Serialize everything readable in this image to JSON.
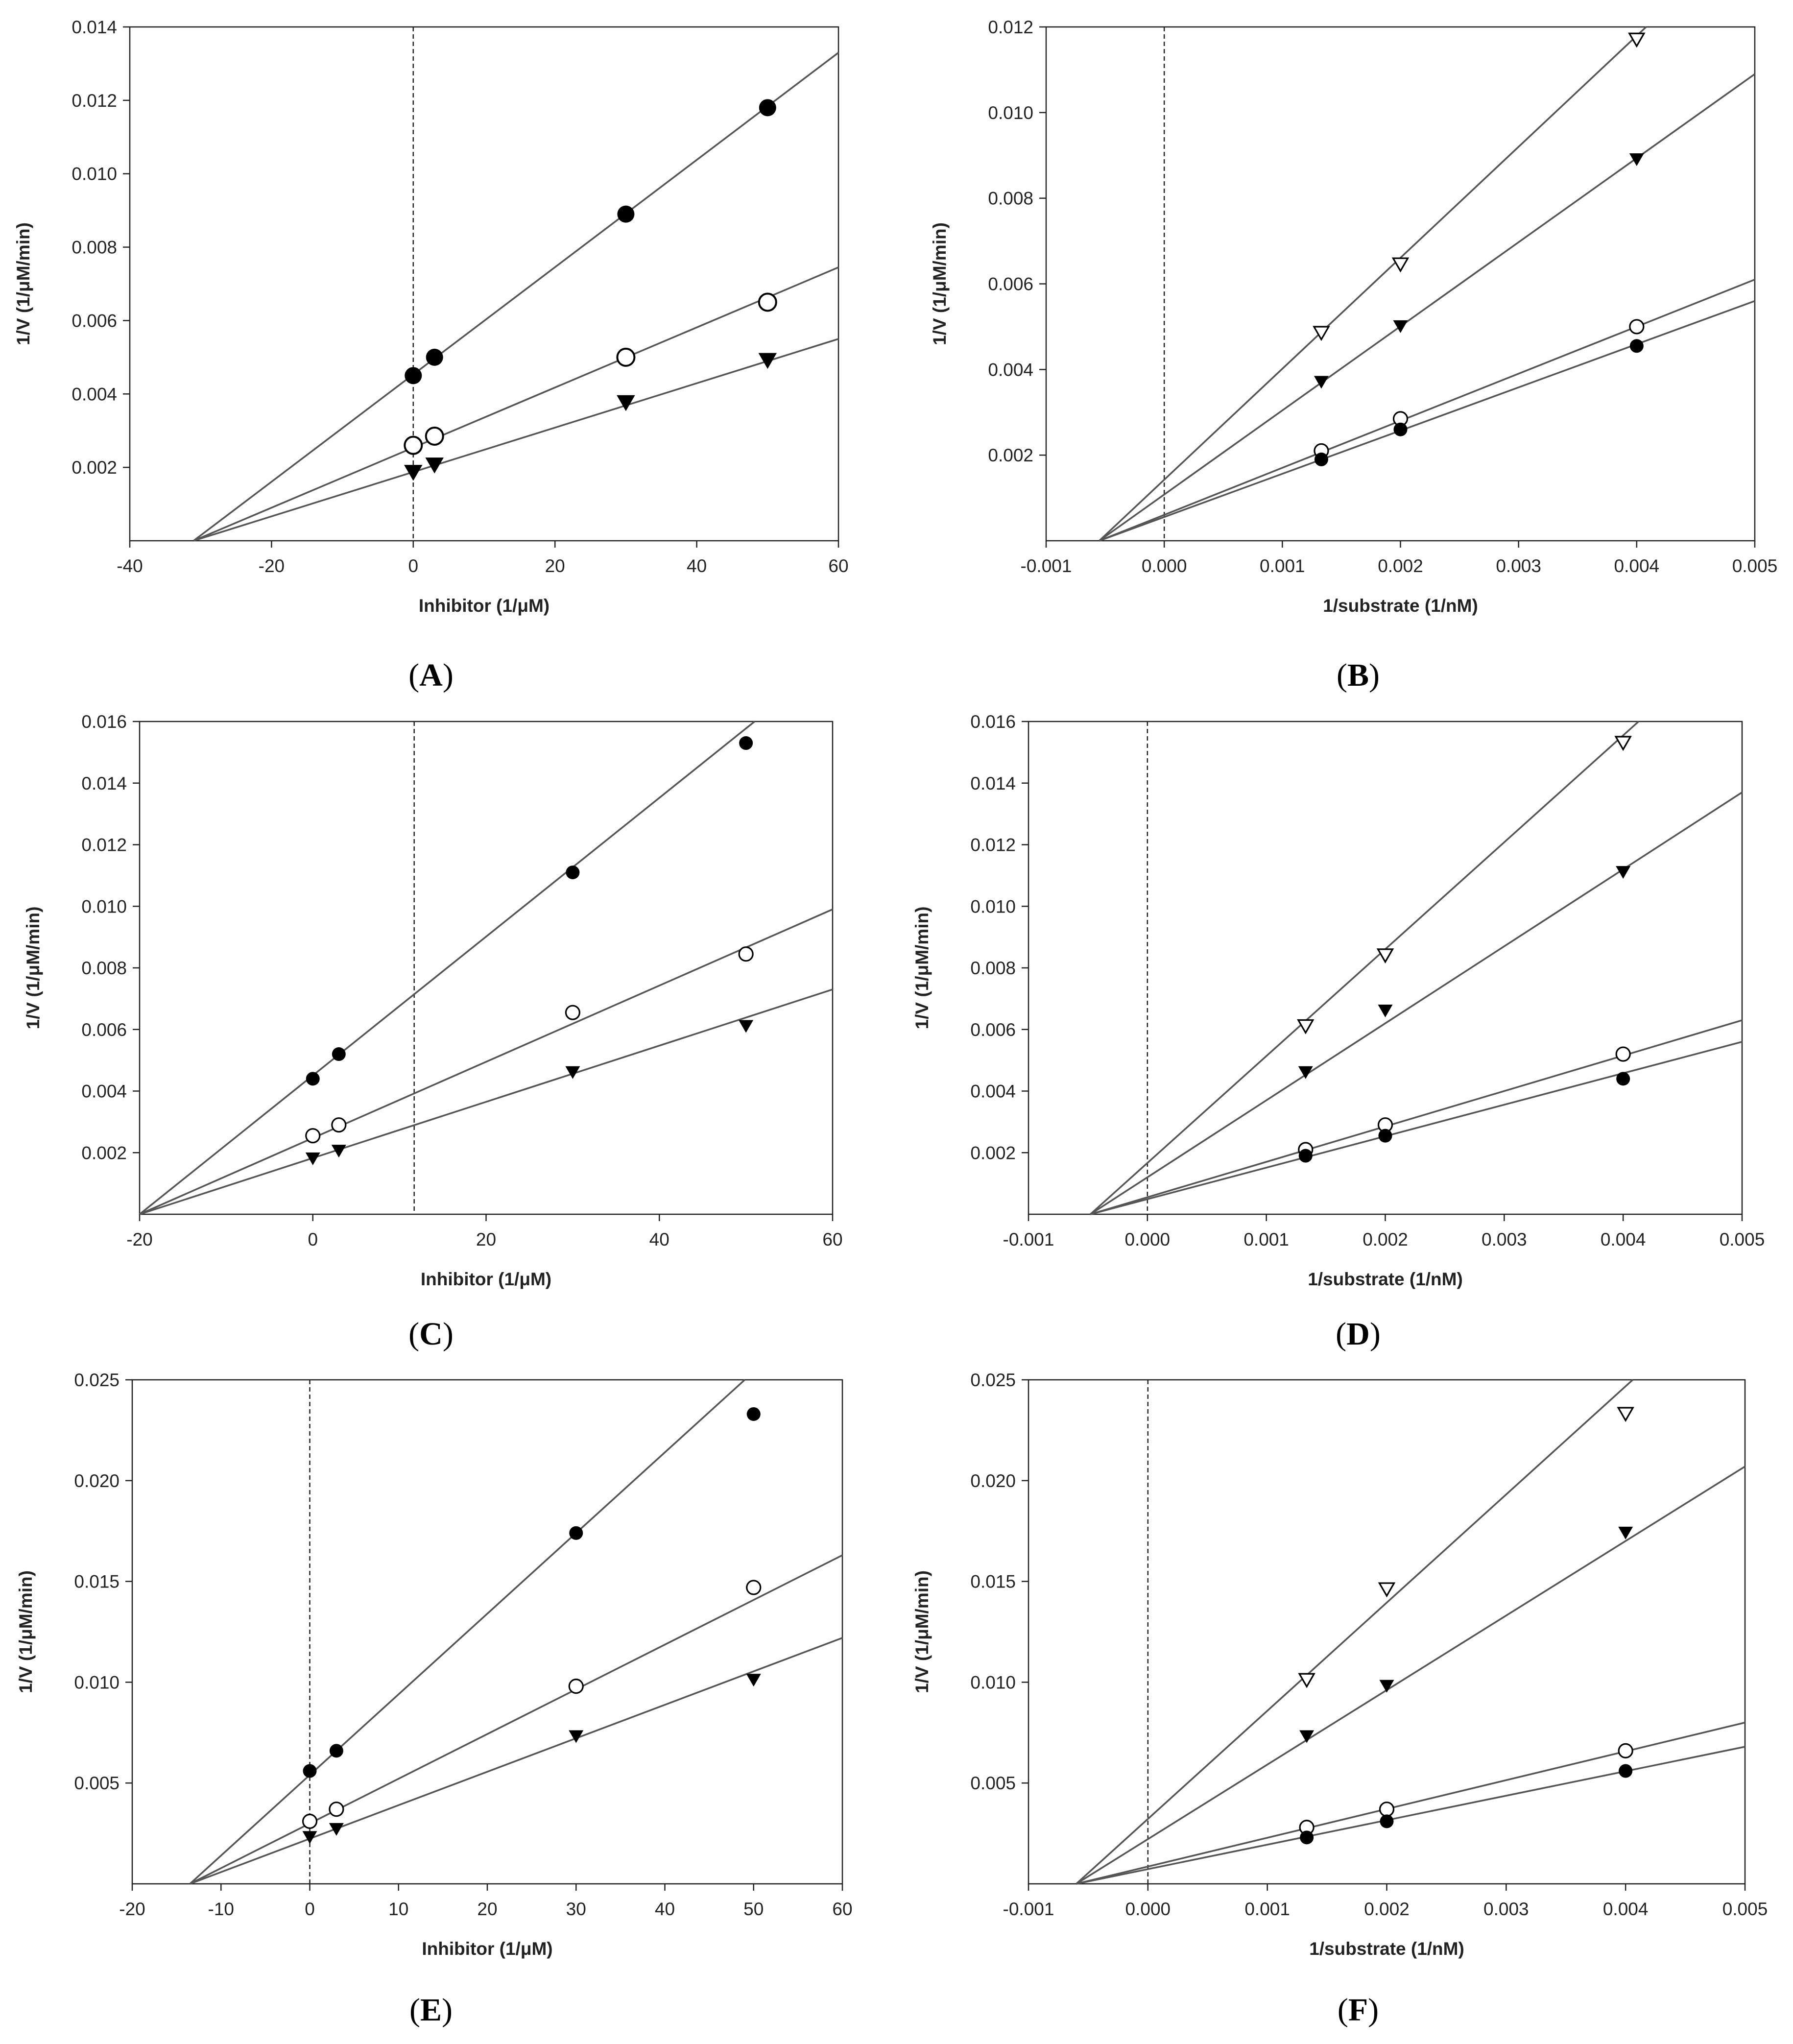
{
  "figure": {
    "description_labels": [
      "A",
      "B",
      "C",
      "D",
      "E",
      "F"
    ]
  },
  "colors": {
    "axis": "#222222",
    "line": "#555555",
    "marker": "#000000",
    "background": "#ffffff"
  },
  "chart_data": [
    {
      "id": "A",
      "panel_label": "A",
      "type": "line",
      "xlabel": "Inhibitor (1/μM)",
      "ylabel": "1/V (1/μM/min)",
      "xlim": [
        -40,
        60
      ],
      "ylim": [
        0,
        0.014
      ],
      "xticks": [
        -40,
        -20,
        0,
        20,
        40,
        60
      ],
      "yticks": [
        0.002,
        0.004,
        0.006,
        0.008,
        0.01,
        0.012,
        0.014
      ],
      "xtick_labels": [
        "-40",
        "-20",
        "0",
        "20",
        "40",
        "60"
      ],
      "ytick_labels": [
        "0.002",
        "0.004",
        "0.006",
        "0.008",
        "0.010",
        "0.012",
        "0.014"
      ],
      "vline": 0,
      "marker_size": 1.25,
      "intersection": [
        -31,
        0
      ],
      "series": [
        {
          "name": "series-filled-circle",
          "marker": "filled-circle",
          "x": [
            0,
            3,
            30,
            50
          ],
          "y": [
            0.0045,
            0.005,
            0.0089,
            0.0118
          ],
          "fit_end": [
            60,
            0.0133
          ]
        },
        {
          "name": "series-open-circle",
          "marker": "open-circle",
          "x": [
            0,
            3,
            30,
            50
          ],
          "y": [
            0.0026,
            0.00285,
            0.005,
            0.0065
          ],
          "fit_end": [
            60,
            0.00745
          ]
        },
        {
          "name": "series-filled-triangle",
          "marker": "filled-triangle",
          "x": [
            0,
            3,
            30,
            50
          ],
          "y": [
            0.00185,
            0.00205,
            0.00375,
            0.0049
          ],
          "fit_end": [
            60,
            0.0055
          ]
        }
      ]
    },
    {
      "id": "B",
      "panel_label": "B",
      "type": "line",
      "xlabel": "1/substrate (1/nM)",
      "ylabel": "1/V (1/μM/min)",
      "xlim": [
        -0.001,
        0.005
      ],
      "ylim": [
        0,
        0.012
      ],
      "xticks": [
        -0.001,
        0,
        0.001,
        0.002,
        0.003,
        0.004,
        0.005
      ],
      "yticks": [
        0.002,
        0.004,
        0.006,
        0.008,
        0.01,
        0.012
      ],
      "xtick_labels": [
        "-0.001",
        "0.000",
        "0.001",
        "0.002",
        "0.003",
        "0.004",
        "0.005"
      ],
      "ytick_labels": [
        "0.002",
        "0.004",
        "0.006",
        "0.008",
        "0.010",
        "0.012"
      ],
      "vline": 0,
      "marker_size": 1.0,
      "intersection": [
        -0.00055,
        0
      ],
      "series": [
        {
          "name": "series-open-triangle",
          "marker": "open-triangle",
          "x": [
            0.00133,
            0.002,
            0.004
          ],
          "y": [
            0.00485,
            0.00645,
            0.0117
          ],
          "fit_end": [
            0.00408,
            0.012
          ]
        },
        {
          "name": "series-filled-triangle",
          "marker": "filled-triangle",
          "x": [
            0.00133,
            0.002,
            0.004
          ],
          "y": [
            0.0037,
            0.005,
            0.0089
          ],
          "fit_end": [
            0.005,
            0.0109
          ]
        },
        {
          "name": "series-open-circle",
          "marker": "open-circle",
          "x": [
            0.00133,
            0.002,
            0.004
          ],
          "y": [
            0.0021,
            0.00285,
            0.005
          ],
          "fit_end": [
            0.005,
            0.0061
          ]
        },
        {
          "name": "series-filled-circle",
          "marker": "filled-circle",
          "x": [
            0.00133,
            0.002,
            0.004
          ],
          "y": [
            0.0019,
            0.0026,
            0.00455
          ],
          "fit_end": [
            0.005,
            0.0056
          ]
        }
      ]
    },
    {
      "id": "C",
      "panel_label": "C",
      "type": "line",
      "xlabel": "Inhibitor (1/μM)",
      "ylabel": "1/V (1/μM/min)",
      "xlim": [
        -20,
        60
      ],
      "ylim": [
        0,
        0.016
      ],
      "xticks": [
        -20,
        0,
        20,
        40,
        60
      ],
      "yticks": [
        0.002,
        0.004,
        0.006,
        0.008,
        0.01,
        0.012,
        0.014,
        0.016
      ],
      "xtick_labels": [
        "-20",
        "0",
        "20",
        "40",
        "60"
      ],
      "ytick_labels": [
        "0.002",
        "0.004",
        "0.006",
        "0.008",
        "0.010",
        "0.012",
        "0.014",
        "0.016"
      ],
      "vline": 11.7,
      "marker_size": 1.0,
      "intersection": [
        -20,
        0
      ],
      "series": [
        {
          "name": "series-filled-circle",
          "marker": "filled-circle",
          "x": [
            0,
            3,
            30,
            50
          ],
          "y": [
            0.0044,
            0.0052,
            0.0111,
            0.0153
          ],
          "fit_end": [
            51,
            0.016
          ]
        },
        {
          "name": "series-open-circle",
          "marker": "open-circle",
          "x": [
            0,
            3,
            30,
            50
          ],
          "y": [
            0.00255,
            0.0029,
            0.00655,
            0.00845
          ],
          "fit_end": [
            60,
            0.0099
          ]
        },
        {
          "name": "series-filled-triangle",
          "marker": "filled-triangle",
          "x": [
            0,
            3,
            30,
            50
          ],
          "y": [
            0.0018,
            0.00205,
            0.0046,
            0.0061
          ],
          "fit_end": [
            60,
            0.0073
          ]
        }
      ]
    },
    {
      "id": "D",
      "panel_label": "D",
      "type": "line",
      "xlabel": "1/substrate (1/nM)",
      "ylabel": "1/V (1/μM/min)",
      "xlim": [
        -0.001,
        0.005
      ],
      "ylim": [
        0,
        0.016
      ],
      "xticks": [
        -0.001,
        0,
        0.001,
        0.002,
        0.003,
        0.004,
        0.005
      ],
      "yticks": [
        0.002,
        0.004,
        0.006,
        0.008,
        0.01,
        0.012,
        0.014,
        0.016
      ],
      "xtick_labels": [
        "-0.001",
        "0.000",
        "0.001",
        "0.002",
        "0.003",
        "0.004",
        "0.005"
      ],
      "ytick_labels": [
        "0.002",
        "0.004",
        "0.006",
        "0.008",
        "0.010",
        "0.012",
        "0.014",
        "0.016"
      ],
      "vline": 0,
      "marker_size": 1.0,
      "intersection": [
        -0.00048,
        0
      ],
      "series": [
        {
          "name": "series-open-triangle",
          "marker": "open-triangle",
          "x": [
            0.00133,
            0.002,
            0.004
          ],
          "y": [
            0.0061,
            0.0084,
            0.0153
          ],
          "fit_end": [
            0.00413,
            0.016
          ]
        },
        {
          "name": "series-filled-triangle",
          "marker": "filled-triangle",
          "x": [
            0.00133,
            0.002,
            0.004
          ],
          "y": [
            0.0046,
            0.0066,
            0.0111
          ],
          "fit_end": [
            0.005,
            0.0137
          ]
        },
        {
          "name": "series-open-circle",
          "marker": "open-circle",
          "x": [
            0.00133,
            0.002,
            0.004
          ],
          "y": [
            0.0021,
            0.0029,
            0.0052
          ],
          "fit_end": [
            0.005,
            0.0063
          ]
        },
        {
          "name": "series-filled-circle",
          "marker": "filled-circle",
          "x": [
            0.00133,
            0.002,
            0.004
          ],
          "y": [
            0.0019,
            0.00255,
            0.0044
          ],
          "fit_end": [
            0.005,
            0.0056
          ]
        }
      ]
    },
    {
      "id": "E",
      "panel_label": "E",
      "type": "line",
      "xlabel": "Inhibitor (1/μM)",
      "ylabel": "1/V (1/μM/min)",
      "xlim": [
        -20,
        60
      ],
      "ylim": [
        0,
        0.025
      ],
      "xticks": [
        -20,
        -10,
        0,
        10,
        20,
        30,
        40,
        50,
        60
      ],
      "yticks": [
        0.005,
        0.01,
        0.015,
        0.02,
        0.025
      ],
      "xtick_labels": [
        "-20",
        "-10",
        "0",
        "10",
        "20",
        "30",
        "40",
        "50",
        "60"
      ],
      "ytick_labels": [
        "0.005",
        "0.010",
        "0.015",
        "0.020",
        "0.025"
      ],
      "vline": 0,
      "marker_size": 1.0,
      "intersection": [
        -13.5,
        0
      ],
      "series": [
        {
          "name": "series-filled-circle",
          "marker": "filled-circle",
          "x": [
            0,
            3,
            30,
            50
          ],
          "y": [
            0.0056,
            0.0066,
            0.0174,
            0.0233
          ],
          "fit_end": [
            49,
            0.025
          ]
        },
        {
          "name": "series-open-circle",
          "marker": "open-circle",
          "x": [
            0,
            3,
            30,
            50
          ],
          "y": [
            0.0031,
            0.0037,
            0.0098,
            0.0147
          ],
          "fit_end": [
            60,
            0.0163
          ]
        },
        {
          "name": "series-filled-triangle",
          "marker": "filled-triangle",
          "x": [
            0,
            3,
            30,
            50
          ],
          "y": [
            0.0023,
            0.0027,
            0.0073,
            0.0101
          ],
          "fit_end": [
            60,
            0.0122
          ]
        }
      ]
    },
    {
      "id": "F",
      "panel_label": "F",
      "type": "line",
      "xlabel": "1/substrate (1/nM)",
      "ylabel": "1/V (1/μM/min)",
      "xlim": [
        -0.001,
        0.005
      ],
      "ylim": [
        0,
        0.025
      ],
      "xticks": [
        -0.001,
        0,
        0.001,
        0.002,
        0.003,
        0.004,
        0.005
      ],
      "yticks": [
        0.005,
        0.01,
        0.015,
        0.02,
        0.025
      ],
      "xtick_labels": [
        "-0.001",
        "0.000",
        "0.001",
        "0.002",
        "0.003",
        "0.004",
        "0.005"
      ],
      "ytick_labels": [
        "0.005",
        "0.010",
        "0.015",
        "0.020",
        "0.025"
      ],
      "vline": 0,
      "marker_size": 1.0,
      "intersection": [
        -0.0006,
        0
      ],
      "series": [
        {
          "name": "series-open-triangle",
          "marker": "open-triangle",
          "x": [
            0.00133,
            0.002,
            0.004
          ],
          "y": [
            0.0101,
            0.0146,
            0.0233
          ],
          "fit_end": [
            0.00406,
            0.025
          ]
        },
        {
          "name": "series-filled-triangle",
          "marker": "filled-triangle",
          "x": [
            0.00133,
            0.002,
            0.004
          ],
          "y": [
            0.0073,
            0.0098,
            0.0174
          ],
          "fit_end": [
            0.005,
            0.0207
          ]
        },
        {
          "name": "series-open-circle",
          "marker": "open-circle",
          "x": [
            0.00133,
            0.002,
            0.004
          ],
          "y": [
            0.0028,
            0.0037,
            0.0066
          ],
          "fit_end": [
            0.005,
            0.008
          ]
        },
        {
          "name": "series-filled-circle",
          "marker": "filled-circle",
          "x": [
            0.00133,
            0.002,
            0.004
          ],
          "y": [
            0.0023,
            0.0031,
            0.0056
          ],
          "fit_end": [
            0.005,
            0.0068
          ]
        }
      ]
    }
  ]
}
